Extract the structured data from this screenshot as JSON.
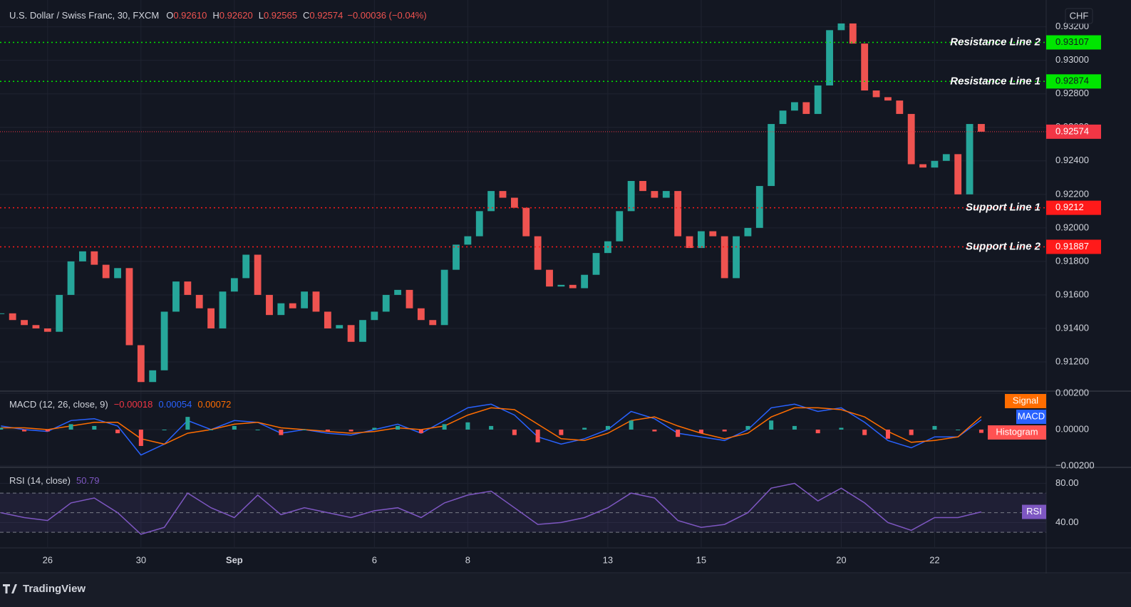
{
  "chart_data": [
    {
      "type": "candlestick",
      "title": "U.S. Dollar / Swiss Franc, 30, FXCM",
      "ohlc": [
        {
          "key": "O",
          "text": "0.92610"
        },
        {
          "key": "H",
          "text": "0.92620"
        },
        {
          "key": "L",
          "text": "0.92565"
        },
        {
          "key": "C",
          "text": "0.92574"
        }
      ],
      "change": "−0.00036 (−0.04%)",
      "currency": "CHF",
      "up_color": "#26a69a",
      "down_color": "#ef5350",
      "x": [
        -1,
        -0.75,
        -0.5,
        -0.25,
        0,
        0.25,
        0.5,
        0.75,
        1,
        1.25,
        1.5,
        1.75,
        2,
        2.25,
        2.5,
        2.75,
        3,
        3.25,
        3.5,
        3.75,
        4,
        4.25,
        4.5,
        4.75,
        5,
        5.25,
        5.5,
        5.75,
        6,
        6.25,
        6.5,
        6.75,
        7,
        7.25,
        7.5,
        7.75,
        8,
        8.25,
        8.5,
        8.75,
        9,
        9.25,
        9.5,
        9.75,
        10,
        10.25,
        10.5,
        10.75,
        11,
        11.25,
        11.5,
        11.75,
        12,
        12.25,
        12.5,
        12.75,
        13,
        13.25,
        13.5,
        13.75,
        14,
        14.25,
        14.5,
        14.75,
        15,
        15.25,
        15.5,
        15.75,
        16,
        16.25,
        16.5,
        16.75,
        17,
        17.25,
        17.5,
        17.75,
        18,
        18.25,
        18.5,
        18.75,
        19,
        19.25,
        19.5,
        19.75,
        20
      ],
      "close": [
        0.9149,
        0.9145,
        0.9142,
        0.914,
        0.9138,
        0.916,
        0.918,
        0.9186,
        0.9178,
        0.917,
        0.9176,
        0.913,
        0.9108,
        0.9115,
        0.915,
        0.9168,
        0.916,
        0.9152,
        0.914,
        0.9162,
        0.917,
        0.9184,
        0.916,
        0.9148,
        0.9155,
        0.9152,
        0.9162,
        0.915,
        0.914,
        0.9142,
        0.9132,
        0.9145,
        0.915,
        0.916,
        0.9163,
        0.9152,
        0.9145,
        0.9142,
        0.9175,
        0.919,
        0.9195,
        0.921,
        0.9222,
        0.9218,
        0.9212,
        0.9195,
        0.9175,
        0.9165,
        0.9166,
        0.9164,
        0.9172,
        0.9185,
        0.9192,
        0.921,
        0.9228,
        0.9222,
        0.9218,
        0.9222,
        0.9195,
        0.9188,
        0.9198,
        0.9195,
        0.917,
        0.9195,
        0.92,
        0.9225,
        0.9262,
        0.927,
        0.9275,
        0.9268,
        0.9285,
        0.9318,
        0.9322,
        0.931,
        0.9282,
        0.9278,
        0.9276,
        0.9268,
        0.9238,
        0.9236,
        0.924,
        0.9244,
        0.922,
        0.9262,
        0.92574
      ],
      "xlim": [
        -1.02,
        21.39
      ],
      "xticks": [
        {
          "value": 0,
          "label": "26"
        },
        {
          "value": 2,
          "label": "30"
        },
        {
          "value": 4,
          "label": "Sep"
        },
        {
          "value": 7,
          "label": "6"
        },
        {
          "value": 9,
          "label": "8"
        },
        {
          "value": 12,
          "label": "13"
        },
        {
          "value": 14,
          "label": "15"
        },
        {
          "value": 17,
          "label": "20"
        },
        {
          "value": 19,
          "label": "22"
        }
      ],
      "ylim": [
        0.9103,
        0.9336
      ],
      "yticks": [
        {
          "value": 0.912,
          "label": "0.91200"
        },
        {
          "value": 0.914,
          "label": "0.91400"
        },
        {
          "value": 0.916,
          "label": "0.91600"
        },
        {
          "value": 0.918,
          "label": "0.91800"
        },
        {
          "value": 0.92,
          "label": "0.92000"
        },
        {
          "value": 0.922,
          "label": "0.92200"
        },
        {
          "value": 0.924,
          "label": "0.92400"
        },
        {
          "value": 0.926,
          "label": "0.92600"
        },
        {
          "value": 0.928,
          "label": "0.92800"
        },
        {
          "value": 0.93,
          "label": "0.93000"
        },
        {
          "value": 0.932,
          "label": "0.93200"
        }
      ],
      "grid": true,
      "hlines": [
        {
          "name": "Resistance Line 2",
          "value": 0.93107,
          "color": "#00e600",
          "text_color": "#131722"
        },
        {
          "name": "Resistance Line 1",
          "value": 0.92874,
          "color": "#00e600",
          "text_color": "#131722"
        },
        {
          "name": "Support Line 1",
          "value": 0.9212,
          "color": "#ff1a1a",
          "text_color": "#ffffff"
        },
        {
          "name": "Support Line 2",
          "value": 0.91887,
          "color": "#ff1a1a",
          "text_color": "#ffffff"
        }
      ],
      "last_price": {
        "value": 0.92574,
        "color": "#f23645"
      }
    },
    {
      "type": "macd",
      "title": "MACD (12, 26, close, 9)",
      "header_values": [
        {
          "text": "−0.00018",
          "color": "#f23645"
        },
        {
          "text": "0.00054",
          "color": "#2962ff"
        },
        {
          "text": "0.00072",
          "color": "#ff6d00"
        }
      ],
      "x": [
        -1,
        -0.5,
        0,
        0.5,
        1,
        1.5,
        2,
        2.5,
        3,
        3.5,
        4,
        4.5,
        5,
        5.5,
        6,
        6.5,
        7,
        7.5,
        8,
        8.5,
        9,
        9.5,
        10,
        10.5,
        11,
        11.5,
        12,
        12.5,
        13,
        13.5,
        14,
        14.5,
        15,
        15.5,
        16,
        16.5,
        17,
        17.5,
        18,
        18.5,
        19,
        19.5,
        20
      ],
      "series": [
        {
          "name": "MACD",
          "color": "#2962ff",
          "values": [
            0.0002,
            0,
            -0.0001,
            0.0005,
            0.0006,
            0.0002,
            -0.0014,
            -0.0008,
            0.0005,
            0,
            0.0005,
            0.0004,
            -0.0002,
            0,
            -0.0002,
            -0.0003,
            0,
            0.0003,
            -0.0002,
            0.0005,
            0.0012,
            0.0014,
            0.0008,
            -0.0004,
            -0.0008,
            -0.0005,
            0,
            0.001,
            0.0006,
            -0.0002,
            -0.0004,
            -0.0006,
            0,
            0.0012,
            0.0014,
            0.001,
            0.0012,
            0.0004,
            -0.0006,
            -0.001,
            -0.0004,
            -0.0004,
            0.00054
          ]
        },
        {
          "name": "Signal",
          "color": "#ff6d00",
          "values": [
            0.0001,
            0.0001,
            0,
            0.0002,
            0.0004,
            0.0004,
            -0.0005,
            -0.0008,
            -0.0002,
            0,
            0.0003,
            0.0004,
            0.0001,
            0,
            -0.0001,
            -0.0002,
            -0.0001,
            0.0001,
            0,
            0.0002,
            0.0008,
            0.0012,
            0.0011,
            0.0003,
            -0.0005,
            -0.0006,
            -0.0002,
            0.0005,
            0.0007,
            0.0002,
            -0.0002,
            -0.0005,
            -0.0002,
            0.0007,
            0.0012,
            0.0012,
            0.0011,
            0.0007,
            -0.0001,
            -0.0007,
            -0.0006,
            -0.0004,
            0.00072
          ]
        },
        {
          "name": "Histogram",
          "color": "#ff5252",
          "up_color": "#26a69a",
          "values": [
            0.0001,
            -0.0001,
            -0.0001,
            0.0003,
            0.0002,
            -0.0002,
            -0.0009,
            0,
            0.0007,
            0,
            0.0002,
            0,
            -0.0003,
            0,
            -0.0001,
            -0.0001,
            0.0001,
            0.0002,
            -0.0002,
            0.0003,
            0.0004,
            0.0002,
            -0.0003,
            -0.0007,
            -0.0003,
            0.0001,
            0.0002,
            0.0005,
            -0.0001,
            -0.0004,
            -0.0002,
            -0.0001,
            0.0002,
            0.0005,
            0.0002,
            -0.0002,
            0.0001,
            -0.0003,
            -0.0005,
            -0.0003,
            0.0002,
            0,
            -0.00018
          ]
        }
      ],
      "xlim": [
        -1.02,
        21.39
      ],
      "ylim": [
        -0.00204,
        0.00208
      ],
      "yticks": [
        {
          "value": 0.002,
          "label": "0.00200"
        },
        {
          "value": 0,
          "label": "0.00000"
        },
        {
          "value": -0.002,
          "label": "−0.00200"
        }
      ]
    },
    {
      "type": "rsi",
      "title": "RSI (14, close)",
      "header_value": "50.79",
      "label": "RSI",
      "x": [
        -1,
        -0.5,
        0,
        0.5,
        1,
        1.5,
        2,
        2.5,
        3,
        3.5,
        4,
        4.5,
        5,
        5.5,
        6,
        6.5,
        7,
        7.5,
        8,
        8.5,
        9,
        9.5,
        10,
        10.5,
        11,
        11.5,
        12,
        12.5,
        13,
        13.5,
        14,
        14.5,
        15,
        15.5,
        16,
        16.5,
        17,
        17.5,
        18,
        18.5,
        19,
        19.5,
        20
      ],
      "values": [
        50,
        45,
        42,
        60,
        65,
        50,
        28,
        35,
        70,
        55,
        45,
        68,
        48,
        55,
        50,
        45,
        52,
        55,
        45,
        60,
        68,
        72,
        55,
        38,
        40,
        45,
        55,
        70,
        65,
        42,
        35,
        38,
        50,
        75,
        80,
        62,
        75,
        60,
        40,
        32,
        45,
        45,
        50.79
      ],
      "color": "#7e57c2",
      "band": [
        30,
        70
      ],
      "midline": 50,
      "xlim": [
        -1.02,
        21.39
      ],
      "ylim": [
        14.8,
        94.8
      ],
      "yticks": [
        {
          "value": 80,
          "label": "80.00"
        },
        {
          "value": 40,
          "label": "40.00"
        }
      ]
    }
  ],
  "footer": {
    "brand": "TradingView"
  }
}
